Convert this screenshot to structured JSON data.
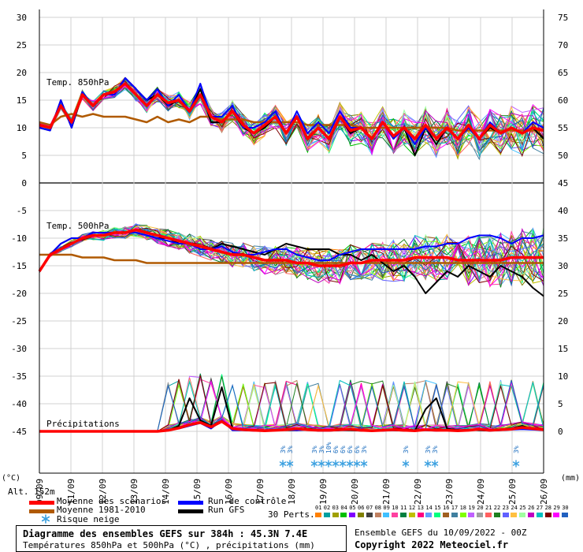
{
  "chart_data": {
    "type": "line",
    "title": "Diagramme des ensembles GEFS sur 384h : 45.3N 7.4E",
    "subtitle": "Températures 850hPa et 500hPa (°C) , précipitations (mm)",
    "x_dates": [
      "09/09",
      "11/09",
      "12/09",
      "13/09",
      "14/09",
      "15/09",
      "16/09",
      "17/09",
      "18/09",
      "19/09",
      "20/09",
      "21/09",
      "22/09",
      "23/09",
      "24/09",
      "25/09",
      "26/09"
    ],
    "left_axis_label": "(°C)",
    "right_axis_label": "(mm)",
    "left_ticks": [
      30,
      25,
      20,
      15,
      10,
      5,
      0,
      -5,
      -10,
      -15,
      -20,
      -25,
      -30,
      -35,
      -40,
      -45
    ],
    "right_ticks": [
      75,
      70,
      65,
      60,
      55,
      50,
      45,
      40,
      35,
      30,
      25,
      20,
      15,
      10,
      5,
      0
    ],
    "altitude": "Alt. 152m",
    "panels": {
      "t850": "Temp. 850hPa",
      "t500": "Temp. 500hPa",
      "precip": "Précipitations"
    },
    "series": [
      {
        "name": "Moyenne des scénarios",
        "color": "#ff0000",
        "t850": [
          10.5,
          10,
          14,
          11,
          16,
          14,
          16,
          16.5,
          18,
          16,
          14,
          16,
          14.5,
          15,
          13,
          16,
          12,
          11,
          13,
          10.5,
          9,
          10.5,
          12,
          9,
          12,
          8,
          10,
          8,
          12,
          9.5,
          10,
          8,
          11,
          8.5,
          10,
          8,
          10.5,
          8,
          10,
          8,
          10.5,
          8,
          10.5,
          9,
          10,
          9,
          10,
          9.5
        ],
        "t500": [
          -16,
          -13,
          -12,
          -11,
          -10,
          -9.5,
          -9.5,
          -9,
          -9,
          -8.5,
          -9,
          -9.5,
          -10,
          -10.5,
          -11,
          -11.5,
          -12,
          -12.5,
          -13,
          -13,
          -13.5,
          -14,
          -14,
          -14,
          -14.5,
          -14.5,
          -15,
          -15,
          -15,
          -14.5,
          -14.5,
          -14,
          -14,
          -14,
          -14,
          -13.5,
          -13.5,
          -13.5,
          -13.5,
          -14,
          -14,
          -14,
          -14,
          -14,
          -13.5,
          -13.5,
          -13.5,
          -13.5
        ],
        "precip": [
          0,
          0,
          0,
          0,
          0,
          0,
          0,
          0,
          0,
          0,
          0,
          0,
          0.2,
          0.6,
          1.2,
          1.6,
          0.8,
          1.8,
          0.5,
          0.3,
          0.2,
          0.1,
          0.2,
          0.3,
          0.5,
          0.3,
          0.2,
          0.2,
          0.3,
          0.4,
          0.2,
          0.1,
          0.2,
          0.3,
          0.2,
          0.1,
          0.3,
          0.2,
          0.2,
          0.1,
          0.2,
          0.4,
          0.2,
          0.3,
          0.4,
          0.7,
          0.5,
          0.3
        ]
      },
      {
        "name": "Moyenne 1981-2010",
        "color": "#b05a00",
        "t850": [
          11,
          10.5,
          12,
          12.5,
          12,
          12.5,
          12,
          12,
          12,
          11.5,
          11,
          12,
          11,
          11.5,
          11,
          12,
          12,
          11.5,
          11.5,
          11.5,
          11,
          11,
          11,
          11,
          11,
          10.5,
          10.5,
          10.5,
          10.5,
          10.5,
          10,
          10,
          10,
          10,
          10,
          10,
          10,
          10,
          10,
          9.5,
          9.5,
          9.5,
          9.5,
          9.5,
          9.5,
          9.5,
          9.5,
          9.5
        ],
        "t500": [
          -13,
          -13,
          -13,
          -13,
          -13.5,
          -13.5,
          -13.5,
          -14,
          -14,
          -14,
          -14.5,
          -14.5,
          -14.5,
          -14.5,
          -14.5,
          -14.5,
          -14.5,
          -14.5,
          -14.5,
          -14.5,
          -14.5,
          -14.5,
          -14.5,
          -14.5,
          -14.5,
          -14.5,
          -14.5,
          -14.5,
          -14.5,
          -14.5,
          -14.5,
          -14.5,
          -14.5,
          -14.5,
          -14.5,
          -14.5,
          -14.5,
          -14.5,
          -14.5,
          -14.5,
          -14.5,
          -14.5,
          -14.5,
          -14.5,
          -14.5,
          -14.5,
          -14.5,
          -14.5
        ]
      },
      {
        "name": "Run de contrôle",
        "color": "#0000ff",
        "t850": [
          10,
          9.5,
          15,
          10,
          16.5,
          14,
          16,
          16,
          19,
          17,
          15,
          17,
          14,
          16,
          13,
          18,
          12,
          12,
          14,
          10,
          10,
          11,
          13,
          9,
          13,
          9,
          11,
          9,
          13,
          10,
          10,
          8,
          11,
          8,
          10,
          7,
          10,
          8,
          10,
          8,
          10,
          8,
          11,
          9,
          10,
          9,
          11,
          10
        ],
        "t500": [
          -16,
          -13,
          -11,
          -10,
          -10,
          -9,
          -9,
          -9,
          -9,
          -9,
          -9.5,
          -10,
          -10.5,
          -11,
          -11,
          -12,
          -12,
          -11.5,
          -12.5,
          -13,
          -13,
          -12.5,
          -12,
          -12,
          -13,
          -13.5,
          -14,
          -14,
          -13,
          -12.5,
          -12,
          -12,
          -12,
          -12,
          -12,
          -12,
          -11.5,
          -11.5,
          -11,
          -11,
          -10,
          -9.5,
          -9.5,
          -10,
          -11,
          -10,
          -10,
          -9.5
        ],
        "precip": [
          0,
          0,
          0,
          0,
          0,
          0,
          0,
          0,
          0,
          0,
          0,
          0,
          0.3,
          0.5,
          1,
          1.5,
          0.5,
          2,
          0.2,
          0.2,
          0.1,
          0.1,
          0.2,
          0.3,
          0.2,
          0.3,
          0.1,
          0.1,
          0.2,
          0.3,
          0.2,
          0.1,
          0.1,
          0.2,
          0.2,
          0.2,
          0.2,
          0.1,
          0.2,
          0.1,
          0.2,
          0.3,
          0.1,
          0.2,
          0.3,
          0.4,
          0.3,
          0.2
        ]
      },
      {
        "name": "Run GFS",
        "color": "#000000",
        "t850": [
          10,
          9.5,
          15,
          10,
          16,
          14,
          16,
          16,
          19,
          17,
          15,
          16,
          14,
          15,
          13,
          17,
          11,
          11,
          13,
          10,
          9,
          10,
          12,
          9,
          12,
          8,
          10,
          8,
          12,
          9,
          10,
          8,
          11,
          8,
          10,
          5,
          10,
          7,
          10,
          8,
          10,
          8,
          10,
          9,
          10,
          9,
          10,
          8
        ],
        "t500": [
          -16,
          -13,
          -11,
          -10,
          -10,
          -9,
          -9,
          -9,
          -9,
          -9,
          -9.5,
          -10,
          -10,
          -11,
          -11,
          -11.5,
          -12,
          -11,
          -11.5,
          -12,
          -12.5,
          -13,
          -12,
          -11,
          -11.5,
          -12,
          -12,
          -12,
          -13,
          -13,
          -14,
          -13,
          -14.5,
          -16,
          -15,
          -17,
          -20,
          -18,
          -16,
          -17,
          -15,
          -16,
          -17,
          -15,
          -16,
          -17,
          -19,
          -20.5
        ],
        "precip": [
          0,
          0,
          0,
          0,
          0,
          0,
          0,
          0,
          0,
          0,
          0,
          0,
          0.2,
          1,
          6,
          2,
          1,
          8,
          0.5,
          0.3,
          0.2,
          0.1,
          0.3,
          0.2,
          0.2,
          0.3,
          0.1,
          0.1,
          0.2,
          0.2,
          0.1,
          0.1,
          0.3,
          0.2,
          0.1,
          0.1,
          4,
          6,
          0.5,
          0.2,
          0.3,
          0.2,
          0.1,
          0.3,
          0.5,
          1,
          0.4,
          0.3
        ]
      }
    ],
    "snow_risk_labels": [
      {
        "date_index": 8.0,
        "pcts": [
          "3%",
          "3%"
        ]
      },
      {
        "date_index": 9.0,
        "pcts": [
          "3%",
          "3%",
          "10%",
          "6%",
          "6%",
          "6%",
          "6%",
          "3%"
        ]
      },
      {
        "date_index": 11.9,
        "pcts": [
          "3%"
        ]
      },
      {
        "date_index": 12.6,
        "pcts": [
          "3%",
          "3%"
        ]
      },
      {
        "date_index": 15.4,
        "pcts": [
          "3%"
        ]
      }
    ]
  },
  "legend": {
    "items": [
      {
        "label": "Moyenne des scénarios",
        "color": "#ff0000"
      },
      {
        "label": "Run de contrôle",
        "color": "#0000ff"
      },
      {
        "label": "Moyenne 1981-2010",
        "color": "#b05a00"
      },
      {
        "label": "Run GFS",
        "color": "#000000"
      }
    ],
    "snow_label": "Risque neige",
    "perts_label": "30 Perts.",
    "pert_numbers": [
      "01",
      "02",
      "03",
      "04",
      "05",
      "06",
      "07",
      "08",
      "09",
      "10",
      "11",
      "12",
      "13",
      "14",
      "15",
      "16",
      "17",
      "18",
      "19",
      "20",
      "21",
      "22",
      "23",
      "24",
      "25",
      "26",
      "27",
      "28",
      "29",
      "30"
    ],
    "pert_colors": [
      "#ff8000",
      "#00a0a0",
      "#a0a000",
      "#00c000",
      "#8000ff",
      "#808000",
      "#404040",
      "#c08060",
      "#40c0ff",
      "#ff40a0",
      "#008040",
      "#c0c000",
      "#ff0080",
      "#60a0ff",
      "#00ff80",
      "#a06020",
      "#4080a0",
      "#80ff00",
      "#c060ff",
      "#a0a0a0",
      "#ff6060",
      "#208020",
      "#6060ff",
      "#ffc040",
      "#a0ffa0",
      "#c000c0",
      "#00c0c0",
      "#800000",
      "#ff00ff",
      "#2060c0"
    ]
  },
  "footer": {
    "title": "Diagramme des ensembles GEFS sur 384h : 45.3N 7.4E",
    "subtitle": "Températures 850hPa et 500hPa (°C) , précipitations (mm)",
    "run": "Ensemble GEFS du 10/09/2022 - 00Z",
    "copyright": "Copyright 2022 Meteociel.fr"
  }
}
